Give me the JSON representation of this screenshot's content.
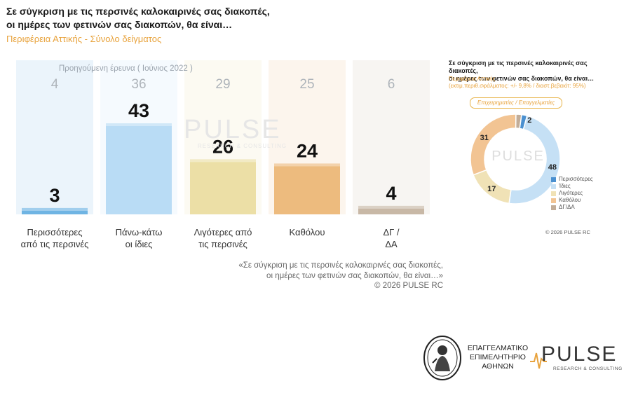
{
  "title": "Σε σύγκριση με τις περσινές καλοκαιρινές σας διακοπές,\nοι ημέρες των φετινών σας διακοπών, θα είναι…",
  "subtitle": "Περιφέρεια Αττικής - Σύνολο δείγματος",
  "previous_label": "Προηγούμενη έρευνα  ( Ιούνιος 2022 )",
  "watermark": {
    "word": "PULSE",
    "sub": "RESEARCH & CONSULTING"
  },
  "quote": "«Σε σύγκριση με τις περσινές καλοκαιρινές σας διακοπές,\nοι ημέρες των φετινών σας διακοπών, θα είναι…»",
  "copyright": "©  2026  PULSE RC",
  "chart_data": [
    {
      "type": "bar",
      "categories": [
        "Περισσότερες\nαπό τις περσινές",
        "Πάνω-κάτω\nοι ίδιες",
        "Λιγότερες από\nτις περσινές",
        "Καθόλου",
        "ΔΓ /\nΔΑ"
      ],
      "series": [
        {
          "name": "",
          "values": [
            3,
            43,
            26,
            24,
            4
          ]
        },
        {
          "name": "Προηγούμενη έρευνα  ( Ιούνιος 2022 )",
          "values": [
            4,
            36,
            29,
            25,
            6
          ]
        }
      ],
      "colors": [
        "#6fb4e3",
        "#b9dcf5",
        "#ecdfa6",
        "#edbb7e",
        "#c8b8a6"
      ],
      "ylim": [
        0,
        100
      ]
    },
    {
      "type": "pie",
      "title": "Σε σύγκριση με τις περσινές καλοκαιρινές σας διακοπές,\nοι ημέρες των φετινών σας διακοπών, θα είναι…",
      "subtitle": "Περιφέρεια Αττικής\n(εκτιμ.περιθ.σφάλματος: +/- 9,8% / διαστ.βεβαιότ: 95%)",
      "tag": "Επιχειρηματίες / Επαγγελματίες",
      "labels": [
        "Περισσότερες",
        "Ίδιες",
        "Λιγότερες",
        "Καθόλου",
        "ΔΓ/ΔΑ"
      ],
      "values": [
        2,
        48,
        17,
        31,
        2
      ],
      "colors": [
        "#4a90d0",
        "#c5e0f5",
        "#f0e2b6",
        "#f2c493",
        "#c2ad98"
      ],
      "copyright": "©  2026  PULSE RC"
    }
  ],
  "chamber": {
    "text": "ΕΠΑΓΓΕΛΜΑΤΙΚΟ\nΕΠΙΜΕΛΗΤΗΡΙΟ\nΑΘΗΝΩΝ"
  },
  "pulse_logo": {
    "word": "PULSE",
    "sub": "RESEARCH & CONSULTING"
  }
}
